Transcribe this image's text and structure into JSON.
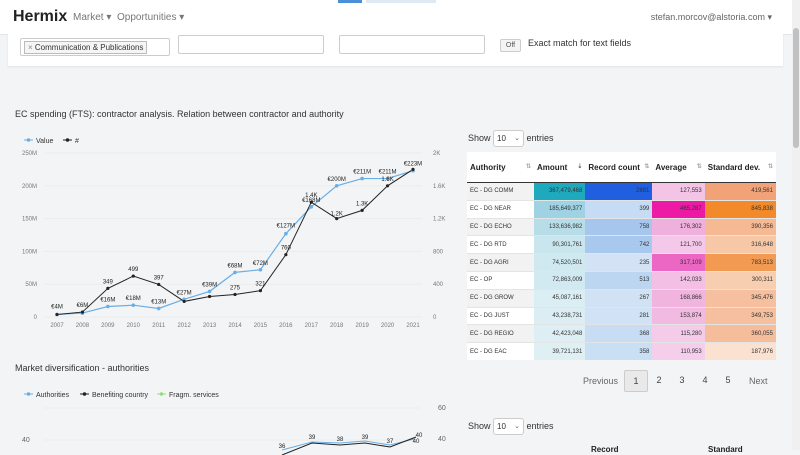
{
  "navbar": {
    "brand": "Hermix",
    "menu": [
      {
        "label": "Market"
      },
      {
        "label": "Opportunities"
      }
    ],
    "user_email": "stefan.morcov@alstoria.com"
  },
  "filters": {
    "chip": "Communication & Publications",
    "toggle_label": "Off",
    "exact_match_label": "Exact match for text fields"
  },
  "chart1": {
    "title": "EC spending (FTS): contractor analysis. Relation between contractor and authority",
    "legend": [
      {
        "label": "Value",
        "color": "#6aaee6"
      },
      {
        "label": "#",
        "color": "#222222"
      }
    ],
    "y_left_ticks": [
      "0",
      "50M",
      "100M",
      "150M",
      "200M",
      "250M"
    ],
    "y_right_ticks": [
      "0",
      "400",
      "800",
      "1.2K",
      "1.6K",
      "2K"
    ]
  },
  "chart2": {
    "title": "Market diversification - authorities",
    "legend": [
      {
        "label": "Authorities",
        "color": "#6aaee6"
      },
      {
        "label": "Benefiting country",
        "color": "#222222"
      },
      {
        "label": "Fragm. services",
        "color": "#90e07a"
      }
    ],
    "y_left_ticks": [
      "40"
    ],
    "y_right_ticks": [
      "40",
      "60"
    ],
    "labels": [
      "36",
      "39",
      "38",
      "39",
      "37",
      "40",
      "40"
    ]
  },
  "chart_data": [
    {
      "type": "line",
      "title": "EC spending (FTS): contractor analysis. Relation between contractor and authority",
      "x": [
        "2007",
        "2008",
        "2009",
        "2010",
        "2011",
        "2012",
        "2013",
        "2014",
        "2015",
        "2016",
        "2017",
        "2018",
        "2019",
        "2020",
        "2021"
      ],
      "ylim_left": [
        0,
        250000000
      ],
      "ylim_right": [
        0,
        2000
      ],
      "series": [
        {
          "name": "Value",
          "axis": "left",
          "values": [
            4000000,
            6000000,
            16000000,
            18000000,
            13000000,
            27000000,
            39000000,
            68000000,
            72000000,
            127000000,
            168000000,
            200000000,
            211000000,
            211000000,
            223000000
          ],
          "labels": [
            "€4M",
            "€6M",
            "€16M",
            "€18M",
            "€13M",
            "€27M",
            "€39M",
            "€68M",
            "€72M",
            "€127M",
            "€168M",
            "€200M",
            "€211M",
            "€211M",
            "€223M"
          ]
        },
        {
          "name": "#",
          "axis": "right",
          "values": [
            30,
            60,
            349,
            499,
            397,
            190,
            250,
            275,
            321,
            760,
            1400,
            1200,
            1300,
            1600,
            1800
          ],
          "labels": [
            "",
            "",
            "349",
            "499",
            "397",
            "",
            "",
            "275",
            "321",
            "760",
            "1.4K",
            "1.2K",
            "1.3K",
            "1.6K",
            ""
          ]
        }
      ]
    }
  ],
  "table": {
    "show_label": "Show",
    "entries_label": "entries",
    "page_size": "10",
    "columns": [
      "Authority",
      "Amount",
      "Record count",
      "Average",
      "Standard dev."
    ],
    "rows": [
      {
        "authority": "EC - DG COMM",
        "amount": "367,479,468",
        "count": "2881",
        "average": "127,553",
        "std": "419,561",
        "c_amount": "#1fa9bd",
        "c_count": "#1f5fe0",
        "c_avg": "#f3c4e6",
        "c_std": "#f2a277"
      },
      {
        "authority": "EC - DG NEAR",
        "amount": "185,649,377",
        "count": "399",
        "average": "465,287",
        "std": "845,838",
        "c_amount": "#9fd2e2",
        "c_count": "#c6dcf4",
        "c_avg": "#ec1aa4",
        "c_std": "#f28a2c"
      },
      {
        "authority": "EC - DG ECHO",
        "amount": "133,636,982",
        "count": "758",
        "average": "176,302",
        "std": "390,356",
        "c_amount": "#b6dde8",
        "c_count": "#a6c6ee",
        "c_avg": "#efb0dd",
        "c_std": "#f5b994"
      },
      {
        "authority": "EC - DG RTD",
        "amount": "90,301,761",
        "count": "742",
        "average": "121,700",
        "std": "316,648",
        "c_amount": "#c9e5ee",
        "c_count": "#a8c8ee",
        "c_avg": "#f4c8e9",
        "c_std": "#f7c8a8"
      },
      {
        "authority": "EC - DG AGRI",
        "amount": "74,520,501",
        "count": "235",
        "average": "317,109",
        "std": "783,513",
        "c_amount": "#d0e9f1",
        "c_count": "#d3e3f5",
        "c_avg": "#ec67c4",
        "c_std": "#f39a52"
      },
      {
        "authority": "EC - OP",
        "amount": "72,863,009",
        "count": "513",
        "average": "142,033",
        "std": "300,311",
        "c_amount": "#d1e9f1",
        "c_count": "#bcd6f2",
        "c_avg": "#f3bfe4",
        "c_std": "#f8ceb1"
      },
      {
        "authority": "EC - DG GROW",
        "amount": "45,087,161",
        "count": "267",
        "average": "168,866",
        "std": "345,476",
        "c_amount": "#dbeef4",
        "c_count": "#d1e2f5",
        "c_avg": "#f0b4df",
        "c_std": "#f6c0a0"
      },
      {
        "authority": "EC - DG JUST",
        "amount": "43,238,731",
        "count": "281",
        "average": "153,874",
        "std": "349,753",
        "c_amount": "#dceef4",
        "c_count": "#d0e2f5",
        "c_avg": "#f1bae1",
        "c_std": "#f6bf9e"
      },
      {
        "authority": "EC - DG REGIO",
        "amount": "42,423,048",
        "count": "368",
        "average": "115,280",
        "std": "360,055",
        "c_amount": "#ddeef4",
        "c_count": "#c8ddf4",
        "c_avg": "#f5cbea",
        "c_std": "#f6bd9a"
      },
      {
        "authority": "EC - DG EAC",
        "amount": "39,721,131",
        "count": "358",
        "average": "110,953",
        "std": "187,976",
        "c_amount": "#dff0f5",
        "c_count": "#c9dff4",
        "c_avg": "#f5ceec",
        "c_std": "#fbe2d0"
      }
    ]
  },
  "pagination": {
    "previous": "Previous",
    "pages": [
      "1",
      "2",
      "3",
      "4",
      "5"
    ],
    "next": "Next"
  },
  "table2": {
    "show_label": "Show",
    "entries_label": "entries",
    "page_size": "10",
    "col_record": "Record",
    "col_std": "Standard"
  }
}
